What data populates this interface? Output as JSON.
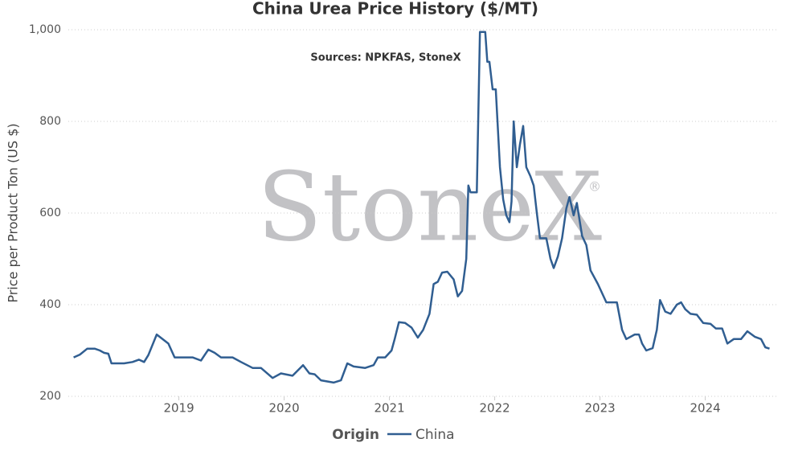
{
  "chart_data": {
    "type": "line",
    "title": "China Urea Price History ($/MT)",
    "annotation": "Sources: NPKFAS, StoneX",
    "watermark": "StoneX",
    "watermark_symbol": "®",
    "ylabel": "Price per Product Ton (US $)",
    "legend_title": "Origin",
    "xlim": [
      2017.95,
      2024.69
    ],
    "xticks": [
      2019,
      2020,
      2021,
      2022,
      2023,
      2024
    ],
    "ylim": [
      200,
      1000
    ],
    "yticks": [
      200,
      400,
      600,
      800,
      {
        "value": 1000,
        "label": "1,000"
      }
    ],
    "grid": true,
    "x": [
      2018.0,
      2018.06,
      2018.13,
      2018.2,
      2018.25,
      2018.29,
      2018.33,
      2018.36,
      2018.48,
      2018.56,
      2018.62,
      2018.67,
      2018.71,
      2018.79,
      2018.9,
      2018.96,
      2019.13,
      2019.21,
      2019.28,
      2019.34,
      2019.4,
      2019.51,
      2019.59,
      2019.7,
      2019.78,
      2019.89,
      2019.97,
      2020.08,
      2020.18,
      2020.24,
      2020.29,
      2020.35,
      2020.47,
      2020.54,
      2020.6,
      2020.66,
      2020.77,
      2020.85,
      2020.89,
      2020.96,
      2021.02,
      2021.05,
      2021.09,
      2021.15,
      2021.21,
      2021.27,
      2021.32,
      2021.38,
      2021.42,
      2021.46,
      2021.5,
      2021.55,
      2021.61,
      2021.65,
      2021.69,
      2021.73,
      2021.75,
      2021.77,
      2021.83,
      2021.86,
      2021.91,
      2021.93,
      2021.95,
      2021.98,
      2022.01,
      2022.05,
      2022.08,
      2022.11,
      2022.14,
      2022.16,
      2022.18,
      2022.21,
      2022.24,
      2022.27,
      2022.3,
      2022.34,
      2022.37,
      2022.4,
      2022.43,
      2022.49,
      2022.53,
      2022.56,
      2022.6,
      2022.64,
      2022.68,
      2022.71,
      2022.75,
      2022.78,
      2022.83,
      2022.87,
      2022.91,
      2022.98,
      2023.06,
      2023.16,
      2023.21,
      2023.25,
      2023.33,
      2023.37,
      2023.4,
      2023.44,
      2023.5,
      2023.54,
      2023.57,
      2023.62,
      2023.67,
      2023.73,
      2023.77,
      2023.81,
      2023.86,
      2023.92,
      2023.98,
      2024.05,
      2024.1,
      2024.16,
      2024.21,
      2024.27,
      2024.34,
      2024.4,
      2024.47,
      2024.53,
      2024.57,
      2024.61
    ],
    "series": [
      {
        "name": "China",
        "color": "#305e91",
        "values": [
          285,
          291,
          304,
          304,
          300,
          295,
          293,
          272,
          272,
          275,
          280,
          275,
          290,
          335,
          315,
          285,
          285,
          278,
          302,
          295,
          285,
          285,
          275,
          262,
          262,
          240,
          250,
          245,
          268,
          250,
          248,
          235,
          230,
          235,
          272,
          265,
          262,
          268,
          285,
          285,
          300,
          325,
          362,
          360,
          350,
          328,
          345,
          380,
          445,
          450,
          470,
          472,
          455,
          418,
          430,
          500,
          660,
          645,
          645,
          995,
          995,
          930,
          930,
          870,
          870,
          700,
          630,
          595,
          580,
          625,
          800,
          700,
          750,
          790,
          700,
          680,
          660,
          600,
          545,
          545,
          500,
          480,
          505,
          545,
          610,
          635,
          595,
          622,
          550,
          530,
          475,
          445,
          405,
          405,
          345,
          325,
          335,
          335,
          315,
          300,
          305,
          345,
          410,
          385,
          380,
          400,
          405,
          390,
          380,
          378,
          360,
          358,
          348,
          348,
          315,
          325,
          325,
          342,
          330,
          325,
          307,
          304
        ]
      }
    ]
  }
}
